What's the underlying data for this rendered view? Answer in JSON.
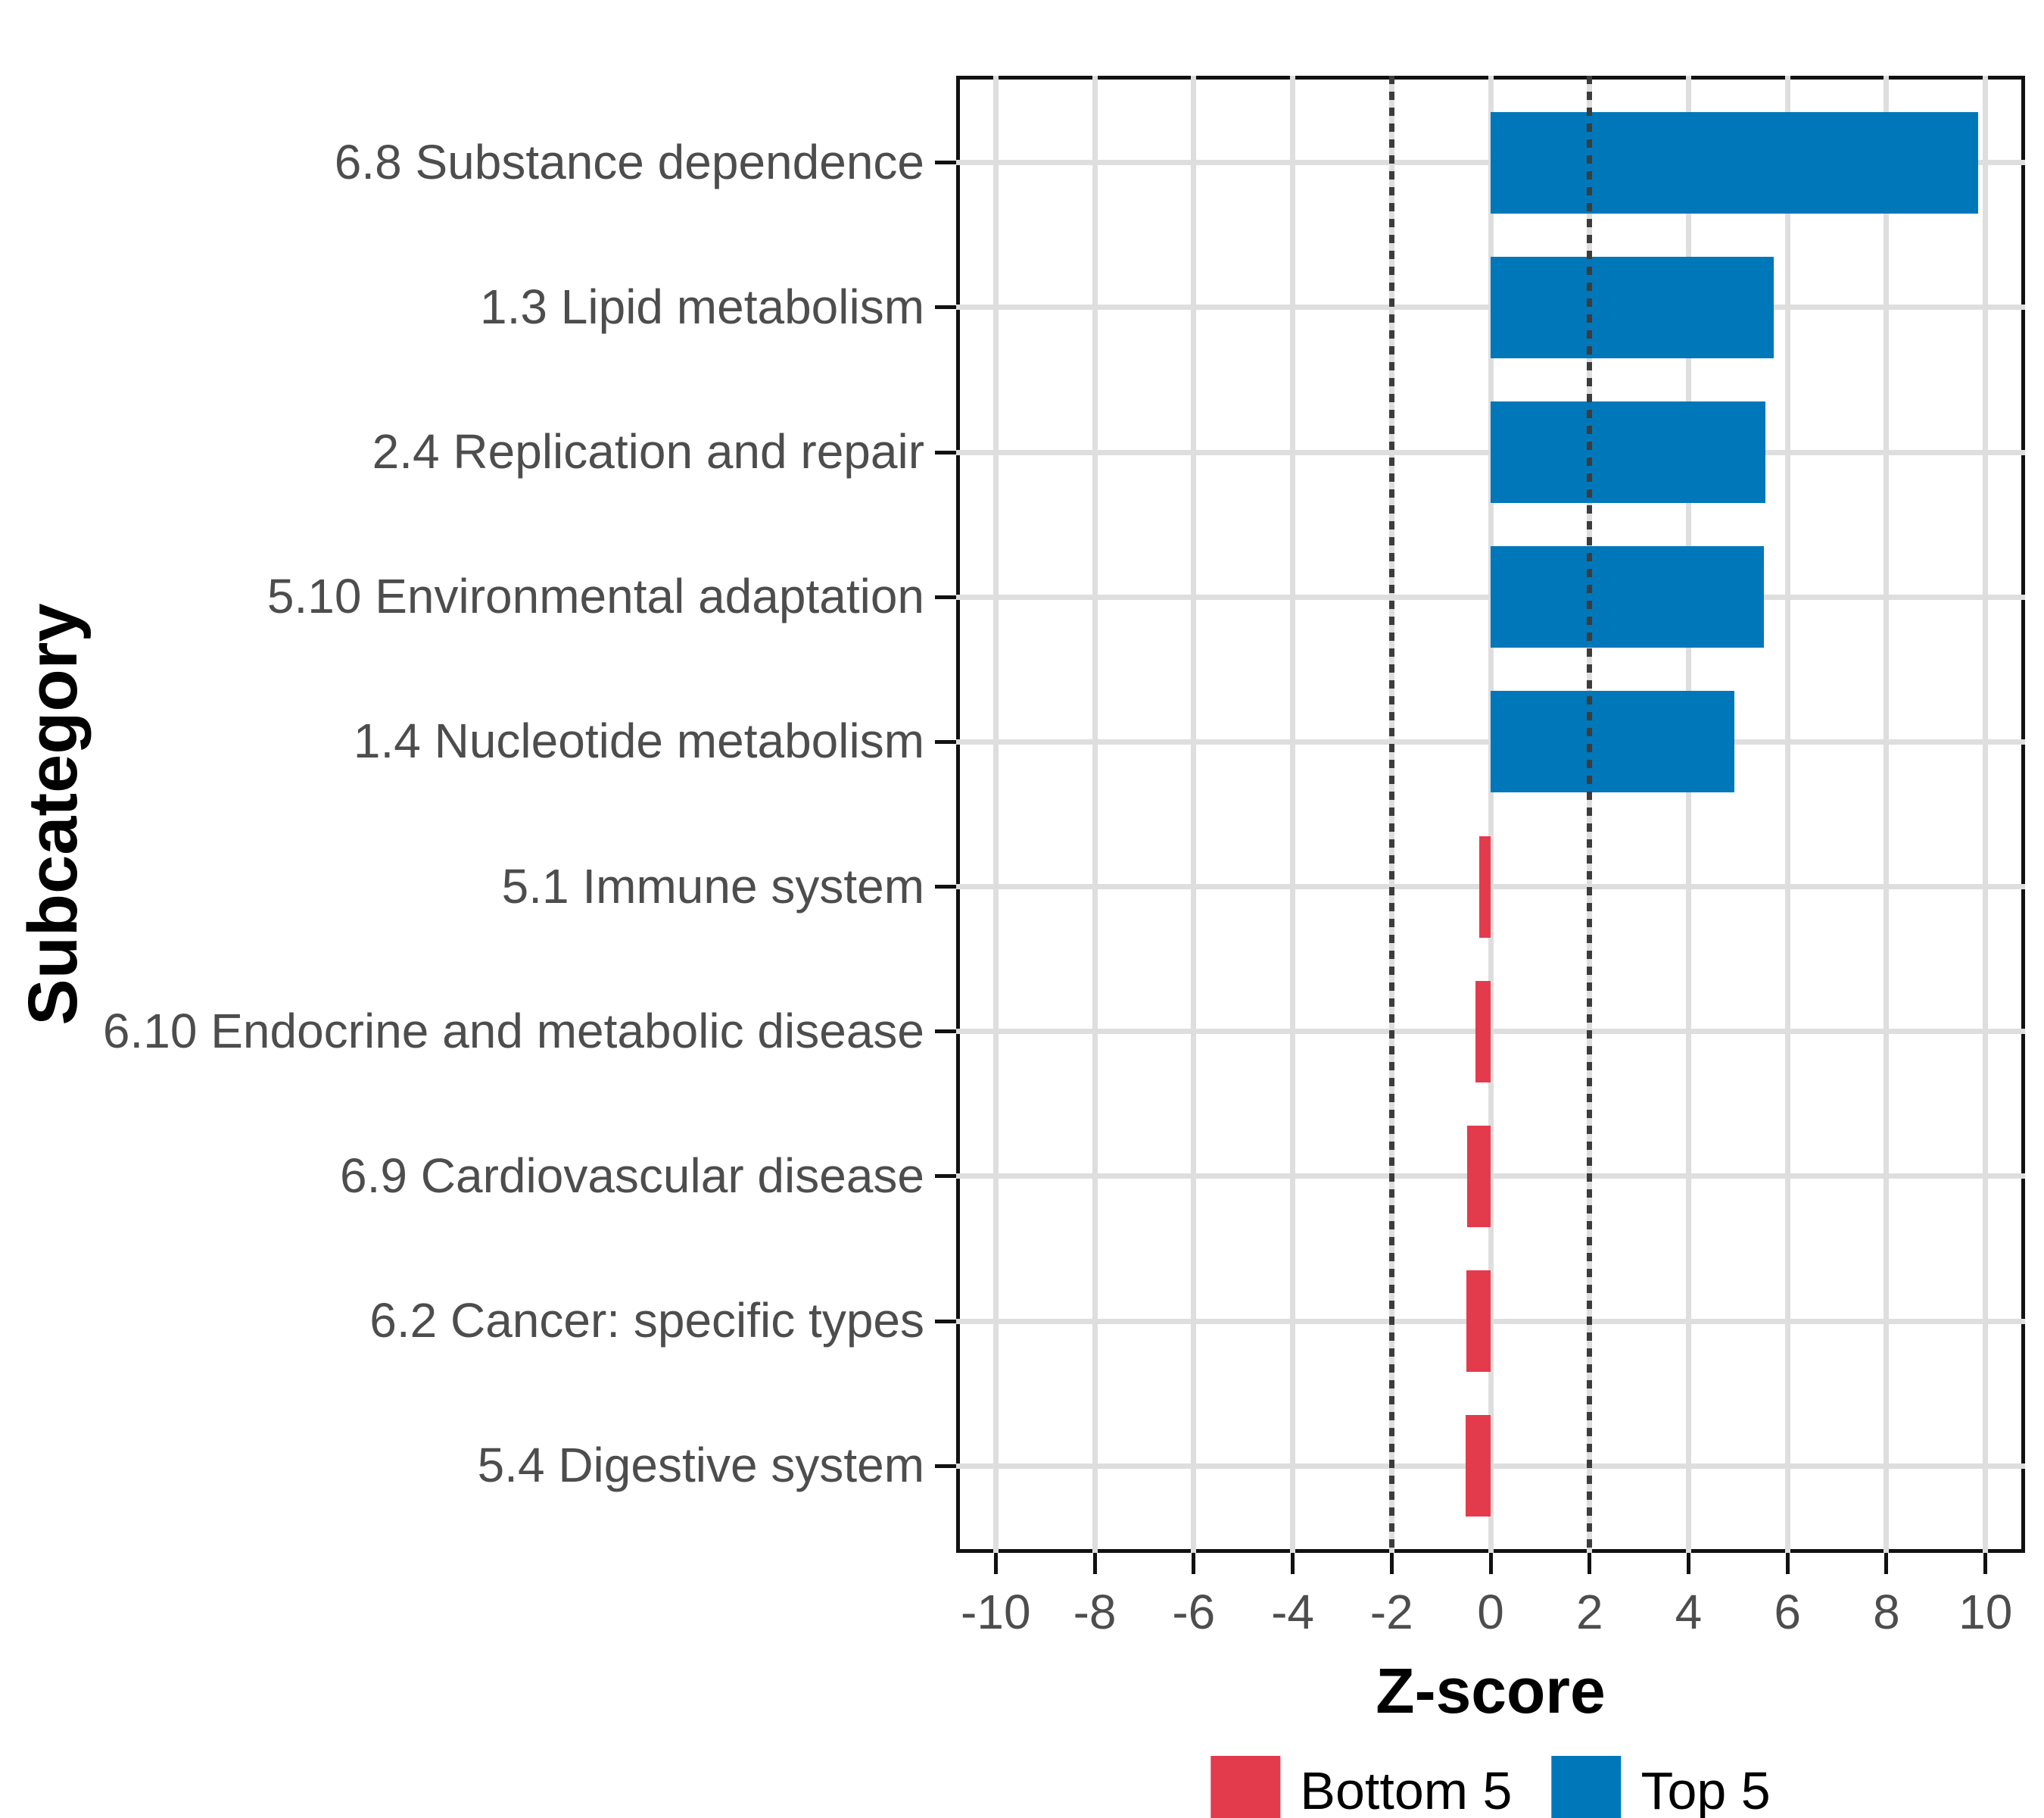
{
  "chart_data": {
    "type": "bar",
    "orientation": "horizontal",
    "title": "",
    "xlabel": "Z-score",
    "ylabel": "Subcategory",
    "categories": [
      "6.8 Substance dependence",
      "1.3 Lipid metabolism",
      "2.4 Replication and repair",
      "5.10 Environmental adaptation",
      "1.4 Nucleotide metabolism",
      "5.1 Immune system",
      "6.10 Endocrine and metabolic disease",
      "6.9 Cardiovascular disease",
      "6.2 Cancer: specific types",
      "5.4 Digestive system"
    ],
    "values": [
      9.85,
      5.72,
      5.56,
      5.53,
      4.92,
      -0.23,
      -0.31,
      -0.48,
      -0.49,
      -0.51
    ],
    "groups": [
      "Top 5",
      "Top 5",
      "Top 5",
      "Top 5",
      "Top 5",
      "Bottom 5",
      "Bottom 5",
      "Bottom 5",
      "Bottom 5",
      "Bottom 5"
    ],
    "x_ticks": [
      -10,
      -8,
      -6,
      -4,
      -2,
      0,
      2,
      4,
      6,
      8,
      10
    ],
    "xlim": [
      -10.8,
      10.8
    ],
    "reference_lines": [
      -2,
      2
    ],
    "grid": true,
    "legend_position": "bottom",
    "legend": [
      {
        "label": "Bottom 5",
        "color": "#E33B4C"
      },
      {
        "label": "Top 5",
        "color": "#0077B8"
      }
    ],
    "colors": {
      "top5": "#0077B8",
      "bottom5": "#E33B4C",
      "gridline": "#DEDEDE",
      "reference_line": "#3C3C3C",
      "panel_border": "#111111",
      "axis_text": "#4D4D4D",
      "axis_title": "#000000"
    }
  }
}
